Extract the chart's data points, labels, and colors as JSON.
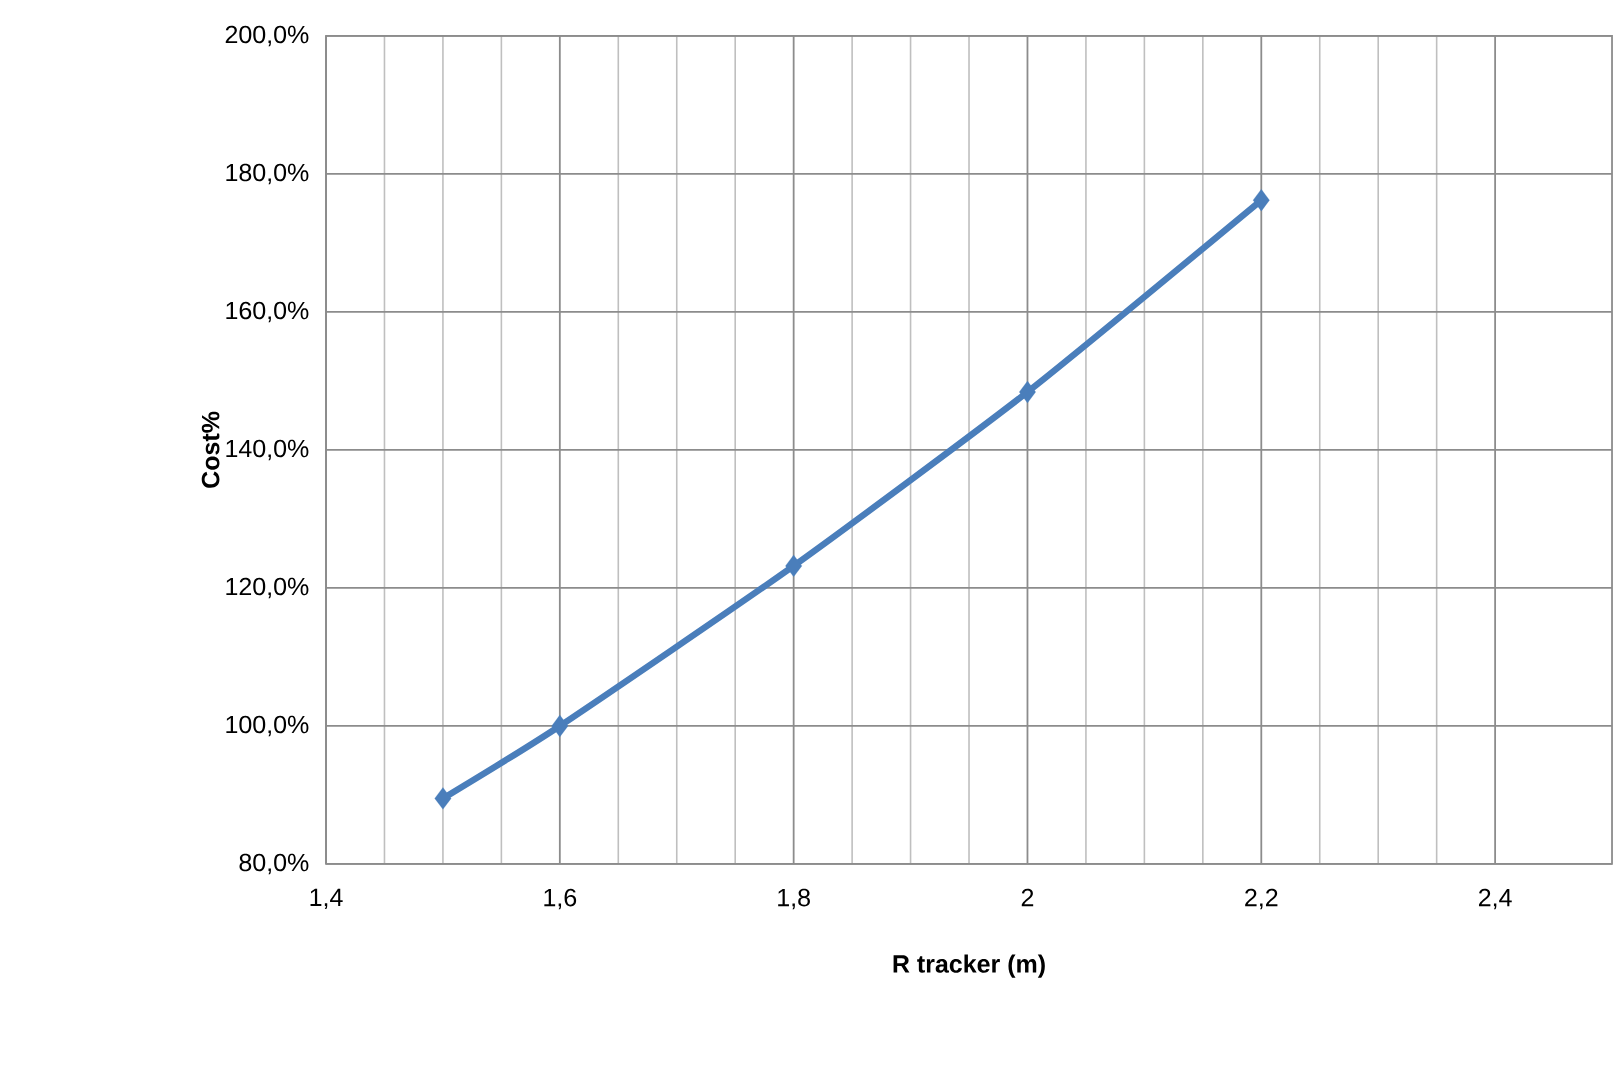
{
  "chart_data": {
    "type": "line",
    "xlabel": "R tracker (m)",
    "ylabel": "Cost%",
    "x": [
      1.5,
      1.6,
      1.8,
      2.0,
      2.2
    ],
    "series": [
      {
        "color": "#4a7ebb",
        "values": [
          89.5,
          100,
          123.2,
          148.4,
          176.2
        ]
      }
    ],
    "xlim": [
      1.4,
      2.5
    ],
    "xticks": [
      {
        "value": 1.4,
        "label": "1,4"
      },
      {
        "value": 1.6,
        "label": "1,6"
      },
      {
        "value": 1.8,
        "label": "1,8"
      },
      {
        "value": 2,
        "label": "2"
      },
      {
        "value": 2.2,
        "label": "2,2"
      },
      {
        "value": 2.4,
        "label": "2,4"
      }
    ],
    "ylim": [
      80,
      200
    ],
    "yticks": [
      {
        "value": 80,
        "label": "80,0%"
      },
      {
        "value": 100,
        "label": "100,0%"
      },
      {
        "value": 120,
        "label": "120,0%"
      },
      {
        "value": 140,
        "label": "140,0%"
      },
      {
        "value": 160,
        "label": "160,0%"
      },
      {
        "value": 180,
        "label": "180,0%"
      },
      {
        "value": 200,
        "label": "200,0%"
      }
    ],
    "grid": true,
    "marker": "diamond",
    "line_style": "solid"
  }
}
